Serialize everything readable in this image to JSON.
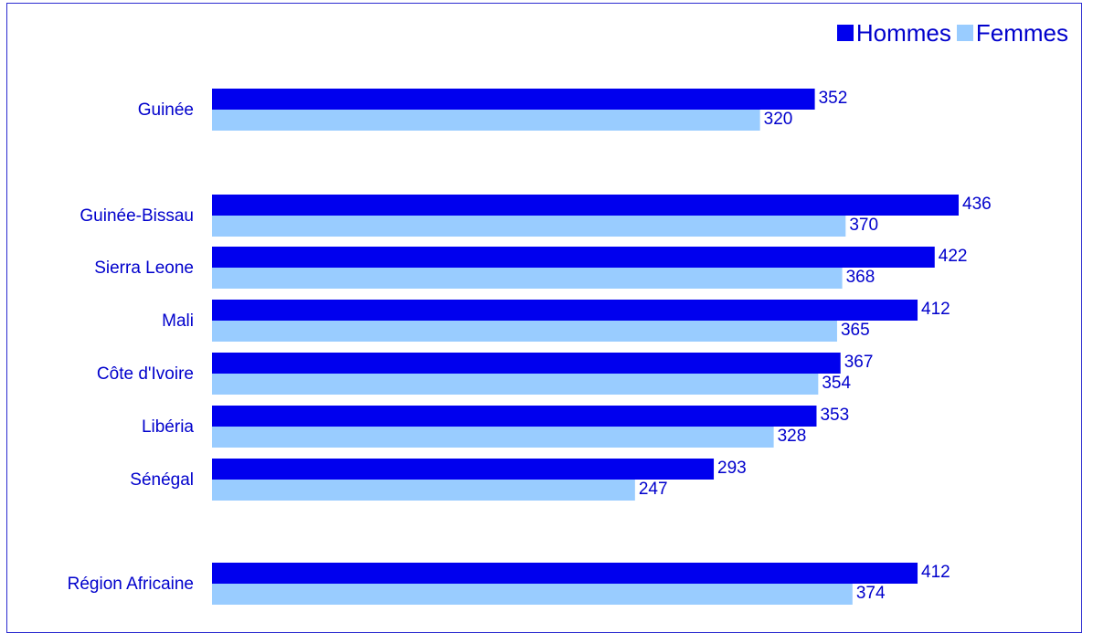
{
  "chart_data": {
    "type": "bar",
    "orientation": "horizontal",
    "categories": [
      "Guinée",
      "Guinée-Bissau",
      "Sierra Leone",
      "Mali",
      "Côte d'Ivoire",
      "Libéria",
      "Sénégal",
      "Région Africaine"
    ],
    "series": [
      {
        "name": "Hommes",
        "color": "#0000ee",
        "values": [
          352,
          436,
          422,
          412,
          367,
          353,
          293,
          412
        ]
      },
      {
        "name": "Femmes",
        "color": "#99ccff",
        "values": [
          320,
          370,
          368,
          365,
          354,
          328,
          247,
          374
        ]
      }
    ],
    "xlim": [
      0,
      436
    ],
    "grid": false,
    "legend_position": "top-right",
    "data_labels": true,
    "label_color": "#0000cc"
  }
}
